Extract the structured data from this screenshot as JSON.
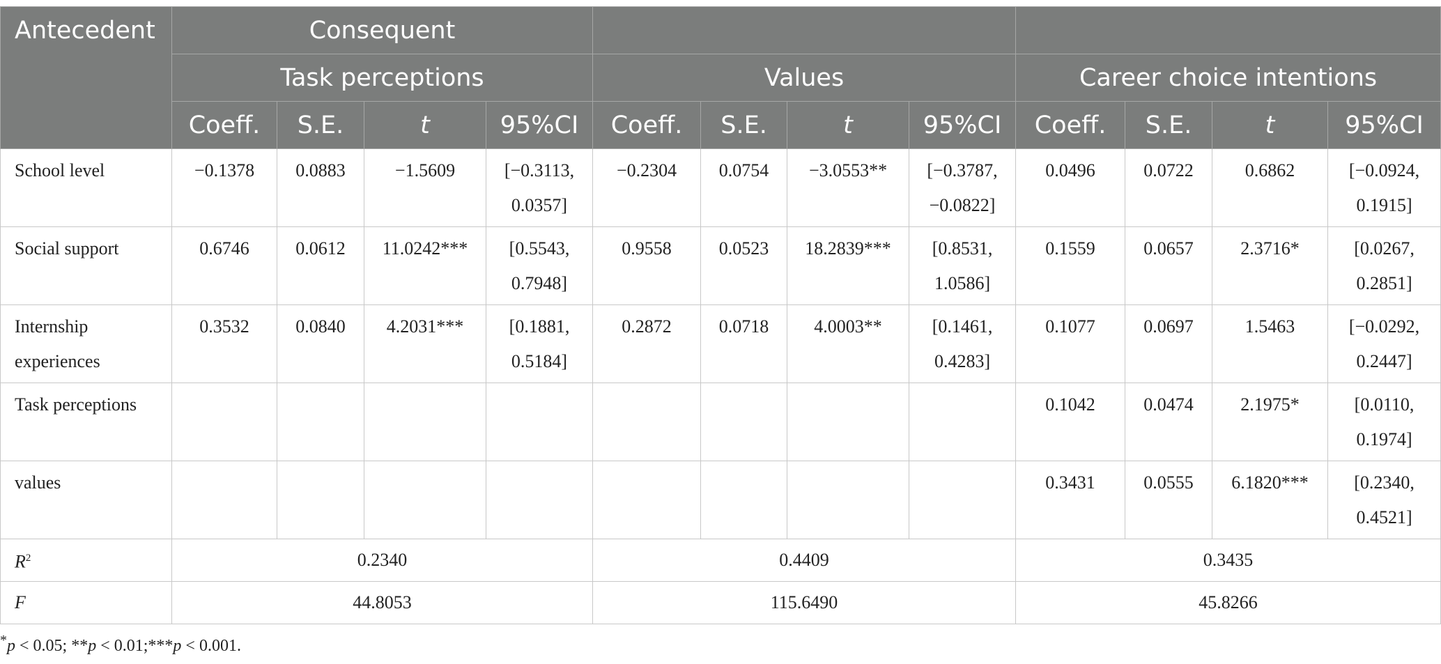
{
  "table": {
    "header": {
      "antecedent": "Antecedent",
      "consequent": "Consequent",
      "groups": [
        "Task perceptions",
        "Values",
        "Career choice intentions"
      ],
      "coeff": "Coeff.",
      "se": "S.E.",
      "t": "t",
      "ci": "95%CI"
    },
    "rows": [
      {
        "label": "School level",
        "task": {
          "coeff": "−0.1378",
          "se": "0.0883",
          "t": "−1.5609",
          "ci_a": "[−0.3113,",
          "ci_b": "0.0357]"
        },
        "values": {
          "coeff": "−0.2304",
          "se": "0.0754",
          "t": "−3.0553**",
          "ci_a": "[−0.3787,",
          "ci_b": "−0.0822]"
        },
        "career": {
          "coeff": "0.0496",
          "se": "0.0722",
          "t": "0.6862",
          "ci_a": "[−0.0924,",
          "ci_b": "0.1915]"
        }
      },
      {
        "label": "Social support",
        "task": {
          "coeff": "0.6746",
          "se": "0.0612",
          "t": "11.0242***",
          "ci_a": "[0.5543,",
          "ci_b": "0.7948]"
        },
        "values": {
          "coeff": "0.9558",
          "se": "0.0523",
          "t": "18.2839***",
          "ci_a": "[0.8531,",
          "ci_b": "1.0586]"
        },
        "career": {
          "coeff": "0.1559",
          "se": "0.0657",
          "t": "2.3716*",
          "ci_a": "[0.0267,",
          "ci_b": "0.2851]"
        }
      },
      {
        "label_a": "Internship",
        "label_b": "experiences",
        "task": {
          "coeff": "0.3532",
          "se": "0.0840",
          "t": "4.2031***",
          "ci_a": "[0.1881,",
          "ci_b": "0.5184]"
        },
        "values": {
          "coeff": "0.2872",
          "se": "0.0718",
          "t": "4.0003**",
          "ci_a": "[0.1461,",
          "ci_b": "0.4283]"
        },
        "career": {
          "coeff": "0.1077",
          "se": "0.0697",
          "t": "1.5463",
          "ci_a": "[−0.0292,",
          "ci_b": "0.2447]"
        }
      },
      {
        "label": "Task perceptions",
        "career": {
          "coeff": "0.1042",
          "se": "0.0474",
          "t": "2.1975*",
          "ci_a": "[0.0110,",
          "ci_b": "0.1974]"
        }
      },
      {
        "label": "values",
        "career": {
          "coeff": "0.3431",
          "se": "0.0555",
          "t": "6.1820***",
          "ci_a": "[0.2340,",
          "ci_b": "0.4521]"
        }
      }
    ],
    "r2": {
      "label_r": "R",
      "label_sup": "2",
      "task": "0.2340",
      "values": "0.4409",
      "career": "0.3435"
    },
    "f": {
      "label": "F",
      "task": "44.8053",
      "values": "115.6490",
      "career": "45.8266"
    }
  },
  "note": {
    "s1": "*",
    "p": "p",
    "t1": " < 0.05; **",
    "t2": " < 0.01;***",
    "t3": " < 0.001."
  }
}
